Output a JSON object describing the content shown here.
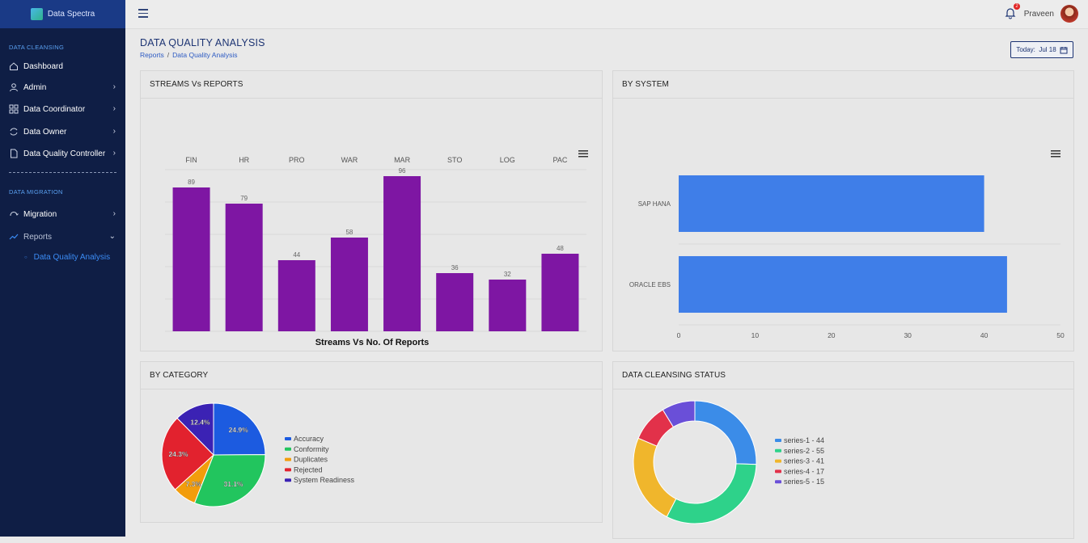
{
  "brand": {
    "name": "Data Spectra"
  },
  "sidebar": {
    "section1": "DATA CLEANSING",
    "section2": "DATA MIGRATION",
    "items": [
      {
        "label": "Dashboard",
        "icon": "home-icon"
      },
      {
        "label": "Admin",
        "icon": "user-icon"
      },
      {
        "label": "Data Coordinator",
        "icon": "grid-icon"
      },
      {
        "label": "Data Owner",
        "icon": "refresh-icon"
      },
      {
        "label": "Data Quality Controller",
        "icon": "file-icon"
      },
      {
        "label": "Migration",
        "icon": "cloud-sync-icon"
      },
      {
        "label": "Reports",
        "icon": "trend-icon"
      }
    ],
    "subitem": "Data Quality Analysis"
  },
  "topbar": {
    "notifications": "2",
    "user": "Praveen"
  },
  "page": {
    "title": "DATA QUALITY ANALYSIS",
    "breadcrumb": [
      "Reports",
      "Data Quality Analysis"
    ],
    "date_button": "Today:  Jul 18"
  },
  "cards": {
    "streams": "STREAMS Vs REPORTS",
    "system": "BY SYSTEM",
    "category": "BY CATEGORY",
    "status": "DATA CLEANSING STATUS"
  },
  "colors": {
    "purple": "#7e16a3",
    "blue": "#3f7ee8",
    "sidebar": "#0f1e45"
  },
  "chart_data": [
    {
      "type": "bar",
      "title": "Streams Vs No. Of Reports",
      "categories": [
        "FIN",
        "HR",
        "PRO",
        "WAR",
        "MAR",
        "STO",
        "LOG",
        "PAC"
      ],
      "values": [
        89,
        79,
        44,
        58,
        96,
        36,
        32,
        48
      ],
      "ylim": [
        0,
        100
      ],
      "grid": true
    },
    {
      "type": "bar",
      "orientation": "horizontal",
      "categories": [
        "SAP HANA",
        "ORACLE EBS"
      ],
      "values": [
        40,
        43
      ],
      "xlim": [
        0,
        50
      ],
      "xticks": [
        0,
        10,
        20,
        30,
        40,
        50
      ]
    },
    {
      "type": "pie",
      "labels": [
        "Accuracy",
        "Conformity",
        "Duplicates",
        "Rejected",
        "System Readiness"
      ],
      "values": [
        24.9,
        31.1,
        7.3,
        24.3,
        12.4
      ],
      "pct_labels": [
        "24.9%",
        "31.1%",
        "7.3%",
        "24.3%",
        "12.4%"
      ],
      "colors": [
        "#1c5be0",
        "#22c55e",
        "#f29d0c",
        "#e2222e",
        "#3b22b4"
      ],
      "legend": "right"
    },
    {
      "type": "pie",
      "style": "donut",
      "labels": [
        "series-1 - 44",
        "series-2 - 55",
        "series-3 - 41",
        "series-4 - 17",
        "series-5 - 15"
      ],
      "values": [
        44,
        55,
        41,
        17,
        15
      ],
      "colors": [
        "#3b8ce8",
        "#2ed28a",
        "#f0b62c",
        "#e2314a",
        "#6a4fd8"
      ],
      "legend": "right"
    }
  ]
}
